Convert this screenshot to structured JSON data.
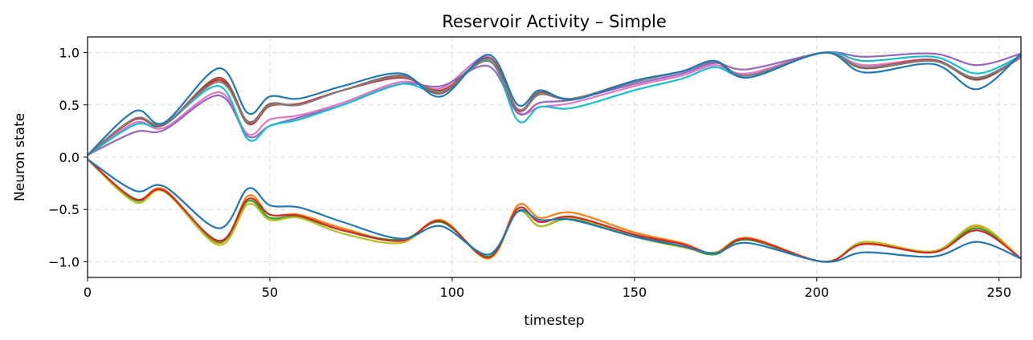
{
  "chart_data": {
    "type": "line",
    "title": "Reservoir Activity – Simple",
    "xlabel": "timestep",
    "ylabel": "Neuron state",
    "xlim": [
      0,
      256
    ],
    "ylim": [
      -1.15,
      1.15
    ],
    "xticks": [
      0,
      50,
      100,
      150,
      200,
      250
    ],
    "yticks": [
      -1.0,
      -0.5,
      0.0,
      0.5,
      1.0
    ],
    "ytick_labels": [
      "−1.0",
      "−0.5",
      "0.0",
      "0.5",
      "1.0"
    ],
    "grid": true,
    "legend": "none",
    "colors": {
      "blue": "#1f77b4",
      "orange": "#ff7f0e",
      "green": "#2ca02c",
      "red": "#d62728",
      "purple": "#9467bd",
      "brown": "#8c564b",
      "pink": "#e377c2",
      "gray": "#7f7f7f",
      "olive": "#bcbd22",
      "cyan": "#17becf"
    },
    "x": [
      0,
      13,
      21,
      36,
      44,
      50,
      58,
      70,
      86,
      97,
      110,
      118,
      124,
      133,
      150,
      163,
      172,
      181,
      202,
      213,
      232,
      244,
      256
    ],
    "series": [
      {
        "color": "pink",
        "values": [
          0.02,
          0.33,
          0.28,
          0.62,
          0.22,
          0.36,
          0.4,
          0.52,
          0.72,
          0.66,
          0.96,
          0.44,
          0.48,
          0.52,
          0.68,
          0.78,
          0.88,
          0.8,
          1.0,
          0.88,
          0.93,
          0.75,
          0.95
        ]
      },
      {
        "color": "purple",
        "values": [
          0.02,
          0.24,
          0.26,
          0.59,
          0.2,
          0.3,
          0.38,
          0.5,
          0.7,
          0.68,
          0.87,
          0.42,
          0.52,
          0.55,
          0.7,
          0.8,
          0.9,
          0.84,
          1.0,
          0.96,
          0.99,
          0.88,
          0.99
        ]
      },
      {
        "color": "cyan",
        "values": [
          0.02,
          0.31,
          0.31,
          0.68,
          0.17,
          0.3,
          0.36,
          0.5,
          0.7,
          0.63,
          0.93,
          0.35,
          0.48,
          0.47,
          0.64,
          0.75,
          0.86,
          0.78,
          1.0,
          0.92,
          0.96,
          0.8,
          0.97
        ]
      },
      {
        "color": "red",
        "values": [
          0.02,
          0.36,
          0.31,
          0.74,
          0.32,
          0.49,
          0.51,
          0.64,
          0.76,
          0.64,
          0.92,
          0.45,
          0.6,
          0.56,
          0.72,
          0.82,
          0.91,
          0.78,
          1.0,
          0.86,
          0.93,
          0.74,
          0.96
        ]
      },
      {
        "color": "brown",
        "values": [
          0.02,
          0.37,
          0.31,
          0.76,
          0.34,
          0.51,
          0.5,
          0.64,
          0.78,
          0.61,
          0.95,
          0.46,
          0.62,
          0.56,
          0.73,
          0.82,
          0.92,
          0.78,
          1.0,
          0.85,
          0.92,
          0.74,
          0.96
        ]
      },
      {
        "color": "gray",
        "values": [
          0.02,
          0.37,
          0.32,
          0.72,
          0.33,
          0.5,
          0.5,
          0.64,
          0.77,
          0.63,
          0.92,
          0.46,
          0.6,
          0.56,
          0.72,
          0.82,
          0.91,
          0.78,
          1.0,
          0.86,
          0.92,
          0.76,
          0.96
        ]
      },
      {
        "color": "blue",
        "values": [
          0.02,
          0.44,
          0.33,
          0.85,
          0.42,
          0.58,
          0.56,
          0.68,
          0.8,
          0.58,
          0.98,
          0.5,
          0.64,
          0.55,
          0.73,
          0.82,
          0.92,
          0.76,
          1.0,
          0.81,
          0.89,
          0.65,
          0.99
        ]
      },
      {
        "color": "orange",
        "values": [
          -0.02,
          -0.4,
          -0.31,
          -0.82,
          -0.37,
          -0.55,
          -0.55,
          -0.68,
          -0.8,
          -0.6,
          -0.97,
          -0.46,
          -0.58,
          -0.53,
          -0.72,
          -0.82,
          -0.92,
          -0.77,
          -1.0,
          -0.82,
          -0.9,
          -0.66,
          -0.97
        ]
      },
      {
        "color": "green",
        "values": [
          -0.02,
          -0.41,
          -0.32,
          -0.81,
          -0.42,
          -0.58,
          -0.57,
          -0.7,
          -0.79,
          -0.62,
          -0.95,
          -0.52,
          -0.66,
          -0.59,
          -0.75,
          -0.85,
          -0.93,
          -0.79,
          -1.0,
          -0.83,
          -0.91,
          -0.68,
          -0.97
        ]
      },
      {
        "color": "olive",
        "values": [
          -0.02,
          -0.43,
          -0.33,
          -0.84,
          -0.45,
          -0.6,
          -0.58,
          -0.73,
          -0.82,
          -0.6,
          -0.97,
          -0.51,
          -0.66,
          -0.58,
          -0.76,
          -0.86,
          -0.91,
          -0.78,
          -1.0,
          -0.81,
          -0.9,
          -0.65,
          -0.97
        ]
      },
      {
        "color": "red",
        "values": [
          -0.02,
          -0.4,
          -0.32,
          -0.8,
          -0.4,
          -0.55,
          -0.56,
          -0.7,
          -0.8,
          -0.61,
          -0.96,
          -0.49,
          -0.62,
          -0.57,
          -0.74,
          -0.83,
          -0.92,
          -0.78,
          -1.0,
          -0.83,
          -0.91,
          -0.7,
          -0.97
        ]
      },
      {
        "color": "blue",
        "values": [
          -0.02,
          -0.32,
          -0.28,
          -0.68,
          -0.3,
          -0.46,
          -0.48,
          -0.62,
          -0.78,
          -0.66,
          -0.93,
          -0.52,
          -0.6,
          -0.6,
          -0.76,
          -0.85,
          -0.92,
          -0.82,
          -1.0,
          -0.91,
          -0.95,
          -0.81,
          -0.97
        ]
      }
    ]
  }
}
